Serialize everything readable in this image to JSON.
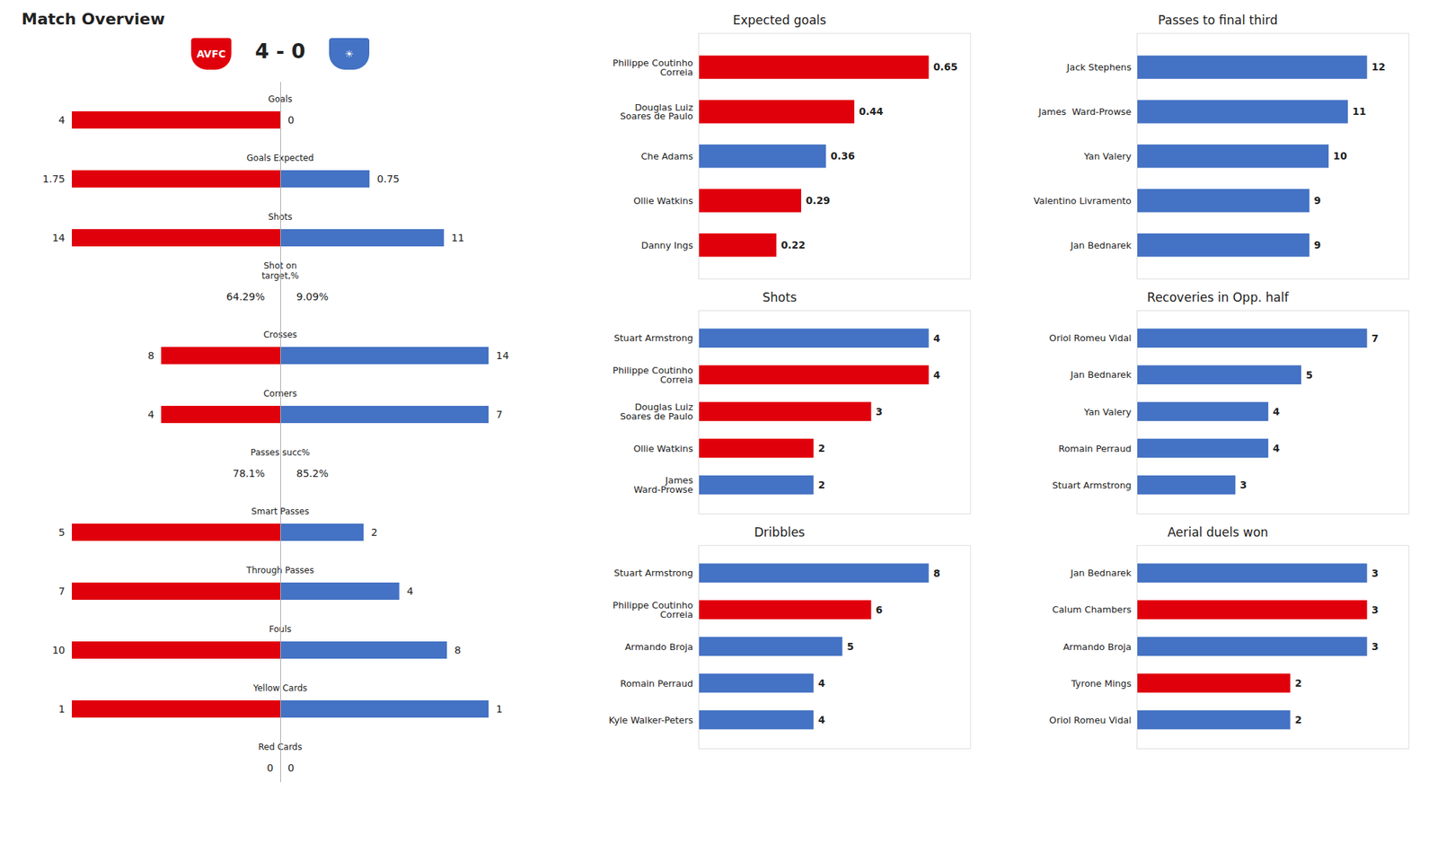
{
  "chart_data": [
    {
      "type": "diverging_bar",
      "title": "Match Overview",
      "subtitle": "4 - 0",
      "orientation": "horizontal",
      "categories": [
        "Goals"
      ],
      "series": [
        {
          "name": "AVFC",
          "color": "#E0000C",
          "values": [
            4
          ]
        },
        {
          "name": "☀",
          "color": "#4472C4",
          "values": [
            0
          ]
        }
      ],
      "xlim": [
        0,
        4
      ],
      "data_labels": true,
      "tick_labels": false
    },
    {
      "type": "diverging_bar",
      "orientation": "horizontal",
      "categories": [
        "Goals Expected"
      ],
      "series": [
        {
          "color": "#E0000C",
          "values": [
            1.75
          ]
        },
        {
          "color": "#4472C4",
          "values": [
            0.75
          ]
        }
      ],
      "xlim": [
        0,
        1.75
      ],
      "data_labels": true,
      "tick_labels": false
    },
    {
      "type": "diverging_bar",
      "orientation": "horizontal",
      "categories": [
        "Shots"
      ],
      "series": [
        {
          "color": "#E0000C",
          "values": [
            14
          ]
        },
        {
          "color": "#4472C4",
          "values": [
            11
          ]
        }
      ],
      "xlim": [
        0,
        14
      ],
      "data_labels": true,
      "tick_labels": false
    },
    {
      "type": "diverging_text",
      "categories": [
        "Shot on\ntarget,%"
      ],
      "series": [
        {
          "values": [
            64.29
          ],
          "value_labels": [
            "64.29%"
          ]
        },
        {
          "values": [
            9.09
          ],
          "value_labels": [
            "9.09%"
          ]
        }
      ],
      "data_labels": true,
      "tick_labels": false
    },
    {
      "type": "diverging_bar",
      "orientation": "horizontal",
      "categories": [
        "Crosses"
      ],
      "series": [
        {
          "color": "#E0000C",
          "values": [
            8
          ]
        },
        {
          "color": "#4472C4",
          "values": [
            14
          ]
        }
      ],
      "xlim": [
        0,
        14
      ],
      "data_labels": true,
      "tick_labels": false
    },
    {
      "type": "diverging_bar",
      "orientation": "horizontal",
      "categories": [
        "Corners"
      ],
      "series": [
        {
          "color": "#E0000C",
          "values": [
            4
          ]
        },
        {
          "color": "#4472C4",
          "values": [
            7
          ]
        }
      ],
      "xlim": [
        0,
        7
      ],
      "data_labels": true,
      "tick_labels": false
    },
    {
      "type": "diverging_text",
      "categories": [
        "Passes succ%"
      ],
      "series": [
        {
          "values": [
            78.1
          ],
          "value_labels": [
            "78.1%"
          ]
        },
        {
          "values": [
            85.2
          ],
          "value_labels": [
            "85.2%"
          ]
        }
      ],
      "data_labels": true,
      "tick_labels": false
    },
    {
      "type": "diverging_bar",
      "orientation": "horizontal",
      "categories": [
        "Smart Passes"
      ],
      "series": [
        {
          "color": "#E0000C",
          "values": [
            5
          ]
        },
        {
          "color": "#4472C4",
          "values": [
            2
          ]
        }
      ],
      "xlim": [
        0,
        5
      ],
      "data_labels": true,
      "tick_labels": false
    },
    {
      "type": "diverging_bar",
      "orientation": "horizontal",
      "categories": [
        "Through Passes"
      ],
      "series": [
        {
          "color": "#E0000C",
          "values": [
            7
          ]
        },
        {
          "color": "#4472C4",
          "values": [
            4
          ]
        }
      ],
      "xlim": [
        0,
        7
      ],
      "data_labels": true,
      "tick_labels": false
    },
    {
      "type": "diverging_bar",
      "orientation": "horizontal",
      "categories": [
        "Fouls"
      ],
      "series": [
        {
          "color": "#E0000C",
          "values": [
            10
          ]
        },
        {
          "color": "#4472C4",
          "values": [
            8
          ]
        }
      ],
      "xlim": [
        0,
        10
      ],
      "data_labels": true,
      "tick_labels": false
    },
    {
      "type": "diverging_bar",
      "orientation": "horizontal",
      "categories": [
        "Yellow Cards"
      ],
      "series": [
        {
          "color": "#E0000C",
          "values": [
            1
          ]
        },
        {
          "color": "#4472C4",
          "values": [
            1
          ]
        }
      ],
      "xlim": [
        0,
        1
      ],
      "data_labels": true,
      "tick_labels": false
    },
    {
      "type": "diverging_bar",
      "orientation": "horizontal",
      "categories": [
        "Red Cards"
      ],
      "series": [
        {
          "color": "#E0000C",
          "values": [
            0
          ]
        },
        {
          "color": "#4472C4",
          "values": [
            0
          ]
        }
      ],
      "xlim": [
        0,
        1
      ],
      "data_labels": true,
      "tick_labels": false
    },
    {
      "type": "bar",
      "orientation": "horizontal",
      "title": "Expected goals",
      "categories": [
        "Philippe Coutinho\nCorreia",
        "Douglas Luiz\nSoares de Paulo",
        "Che Adams",
        "Ollie Watkins",
        "Danny Ings"
      ],
      "values": [
        0.65,
        0.44,
        0.36,
        0.29,
        0.22
      ],
      "colors": [
        "#E0000C",
        "#E0000C",
        "#4472C4",
        "#E0000C",
        "#E0000C"
      ],
      "xlim": [
        0,
        0.767
      ],
      "data_labels": true,
      "tick_labels": "y"
    },
    {
      "type": "bar",
      "orientation": "horizontal",
      "title": "Shots",
      "categories": [
        "Stuart Armstrong",
        "Philippe Coutinho\nCorreia",
        "Douglas Luiz\nSoares de Paulo",
        "Ollie Watkins",
        "James\nWard-Prowse"
      ],
      "values": [
        4,
        4,
        3,
        2,
        2
      ],
      "colors": [
        "#4472C4",
        "#E0000C",
        "#E0000C",
        "#E0000C",
        "#4472C4"
      ],
      "xlim": [
        0,
        4.72
      ],
      "data_labels": true,
      "tick_labels": "y"
    },
    {
      "type": "bar",
      "orientation": "horizontal",
      "title": "Dribbles",
      "categories": [
        "Stuart Armstrong",
        "Philippe Coutinho\nCorreia",
        "Armando Broja",
        "Romain Perraud",
        "Kyle Walker-Peters"
      ],
      "values": [
        8,
        6,
        5,
        4,
        4
      ],
      "colors": [
        "#4472C4",
        "#E0000C",
        "#4472C4",
        "#4472C4",
        "#4472C4"
      ],
      "xlim": [
        0,
        9.44
      ],
      "data_labels": true,
      "tick_labels": "y"
    },
    {
      "type": "bar",
      "orientation": "horizontal",
      "title": "Passes to final third",
      "categories": [
        "Jack Stephens",
        "James  Ward-Prowse",
        "Yan Valery",
        "Valentino Livramento",
        "Jan Bednarek"
      ],
      "values": [
        12,
        11,
        10,
        9,
        9
      ],
      "colors": [
        "#4472C4",
        "#4472C4",
        "#4472C4",
        "#4472C4",
        "#4472C4"
      ],
      "xlim": [
        0,
        14.16
      ],
      "data_labels": true,
      "tick_labels": "y"
    },
    {
      "type": "bar",
      "orientation": "horizontal",
      "title": "Recoveries in Opp. half",
      "categories": [
        "Oriol Romeu Vidal",
        "Jan Bednarek",
        "Yan Valery",
        "Romain Perraud",
        "Stuart Armstrong"
      ],
      "values": [
        7,
        5,
        4,
        4,
        3
      ],
      "colors": [
        "#4472C4",
        "#4472C4",
        "#4472C4",
        "#4472C4",
        "#4472C4"
      ],
      "xlim": [
        0,
        8.26
      ],
      "data_labels": true,
      "tick_labels": "y"
    },
    {
      "type": "bar",
      "orientation": "horizontal",
      "title": "Aerial duels won",
      "categories": [
        "Jan Bednarek",
        "Calum Chambers",
        "Armando Broja",
        "Tyrone Mings",
        "Oriol Romeu Vidal"
      ],
      "values": [
        3,
        3,
        3,
        2,
        2
      ],
      "colors": [
        "#4472C4",
        "#E0000C",
        "#4472C4",
        "#E0000C",
        "#4472C4"
      ],
      "xlim": [
        0,
        3.54
      ],
      "data_labels": true,
      "tick_labels": "y"
    }
  ]
}
